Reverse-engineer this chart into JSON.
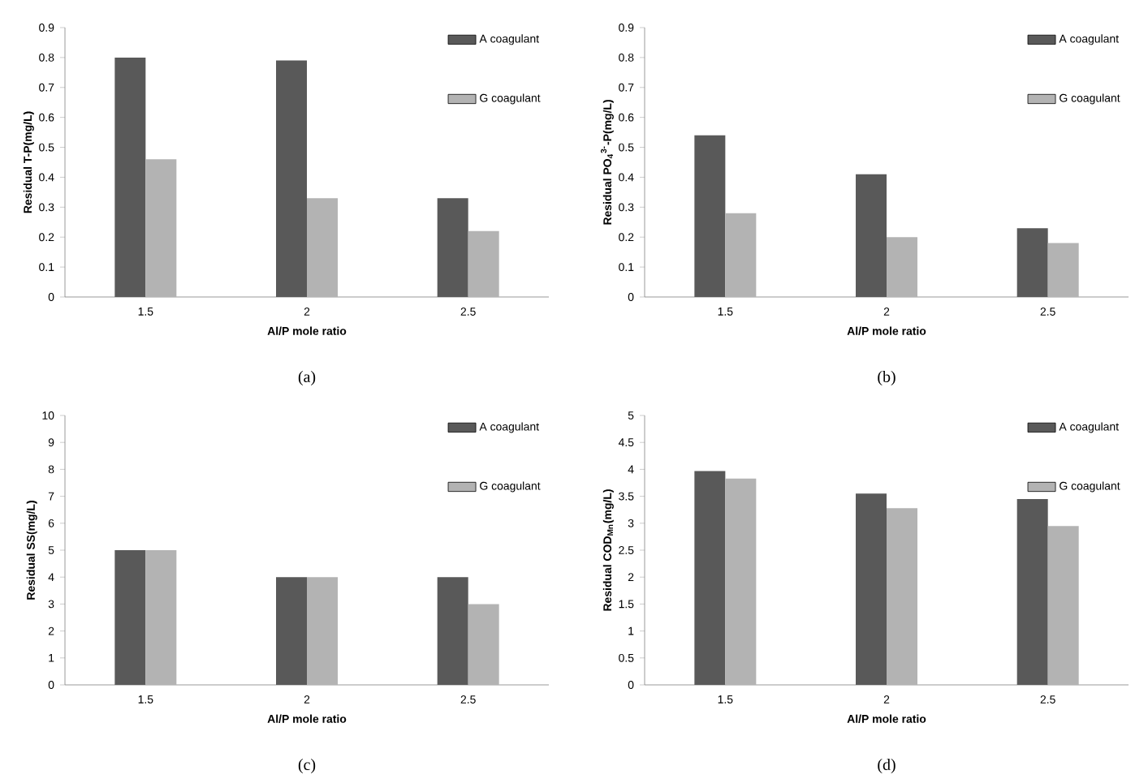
{
  "chart_data": [
    {
      "type": "bar",
      "categories": [
        "1.5",
        "2",
        "2.5"
      ],
      "xlabel": "Al/P mole ratio",
      "ylabel": "Residual T-P(mg/L)",
      "annotations": [
        "(a)"
      ],
      "ylim": [
        0,
        0.9
      ],
      "yticks": [
        0,
        0.1,
        0.2,
        0.3,
        0.4,
        0.5,
        0.6,
        0.7,
        0.8,
        0.9
      ],
      "legend": "top right",
      "series": [
        {
          "name": "A coagulant",
          "color": "#595959",
          "values": [
            0.8,
            0.79,
            0.33
          ]
        },
        {
          "name": "G coagulant",
          "color": "#b3b3b3",
          "values": [
            0.46,
            0.33,
            0.22
          ]
        }
      ]
    },
    {
      "type": "bar",
      "categories": [
        "1.5",
        "2",
        "2.5"
      ],
      "xlabel": "Al/P mole ratio",
      "ylabel": "Residual PO$_{4}$$^{3-}$-P(mg/L)",
      "annotations": [
        "(b)"
      ],
      "ylim": [
        0,
        0.9
      ],
      "yticks": [
        0,
        0.1,
        0.2,
        0.3,
        0.4,
        0.5,
        0.6,
        0.7,
        0.8,
        0.9
      ],
      "legend": "top right",
      "series": [
        {
          "name": "A coagulant",
          "color": "#595959",
          "values": [
            0.54,
            0.41,
            0.23
          ]
        },
        {
          "name": "G coagulant",
          "color": "#b3b3b3",
          "values": [
            0.28,
            0.2,
            0.18
          ]
        }
      ]
    },
    {
      "type": "bar",
      "categories": [
        "1.5",
        "2",
        "2.5"
      ],
      "xlabel": "Al/P mole ratio",
      "ylabel": "Residual SS(mg/L)",
      "annotations": [
        "(c)"
      ],
      "ylim": [
        0,
        10
      ],
      "yticks": [
        0,
        1,
        2,
        3,
        4,
        5,
        6,
        7,
        8,
        9,
        10
      ],
      "legend": "top right",
      "series": [
        {
          "name": "A coagulant",
          "color": "#595959",
          "values": [
            5,
            4,
            4
          ]
        },
        {
          "name": "G coagulant",
          "color": "#b3b3b3",
          "values": [
            5,
            4,
            3
          ]
        }
      ]
    },
    {
      "type": "bar",
      "categories": [
        "1.5",
        "2",
        "2.5"
      ],
      "xlabel": "Al/P mole ratio",
      "ylabel": "Residual COD$_{Mn}$(mg/L)",
      "annotations": [
        "(d)"
      ],
      "ylim": [
        0,
        5
      ],
      "yticks": [
        0,
        0.5,
        1,
        1.5,
        2,
        2.5,
        3,
        3.5,
        4,
        4.5,
        5
      ],
      "legend": "top right",
      "series": [
        {
          "name": "A coagulant",
          "color": "#595959",
          "values": [
            3.97,
            3.55,
            3.45
          ]
        },
        {
          "name": "G coagulant",
          "color": "#b3b3b3",
          "values": [
            3.83,
            3.28,
            2.95
          ]
        }
      ]
    }
  ]
}
